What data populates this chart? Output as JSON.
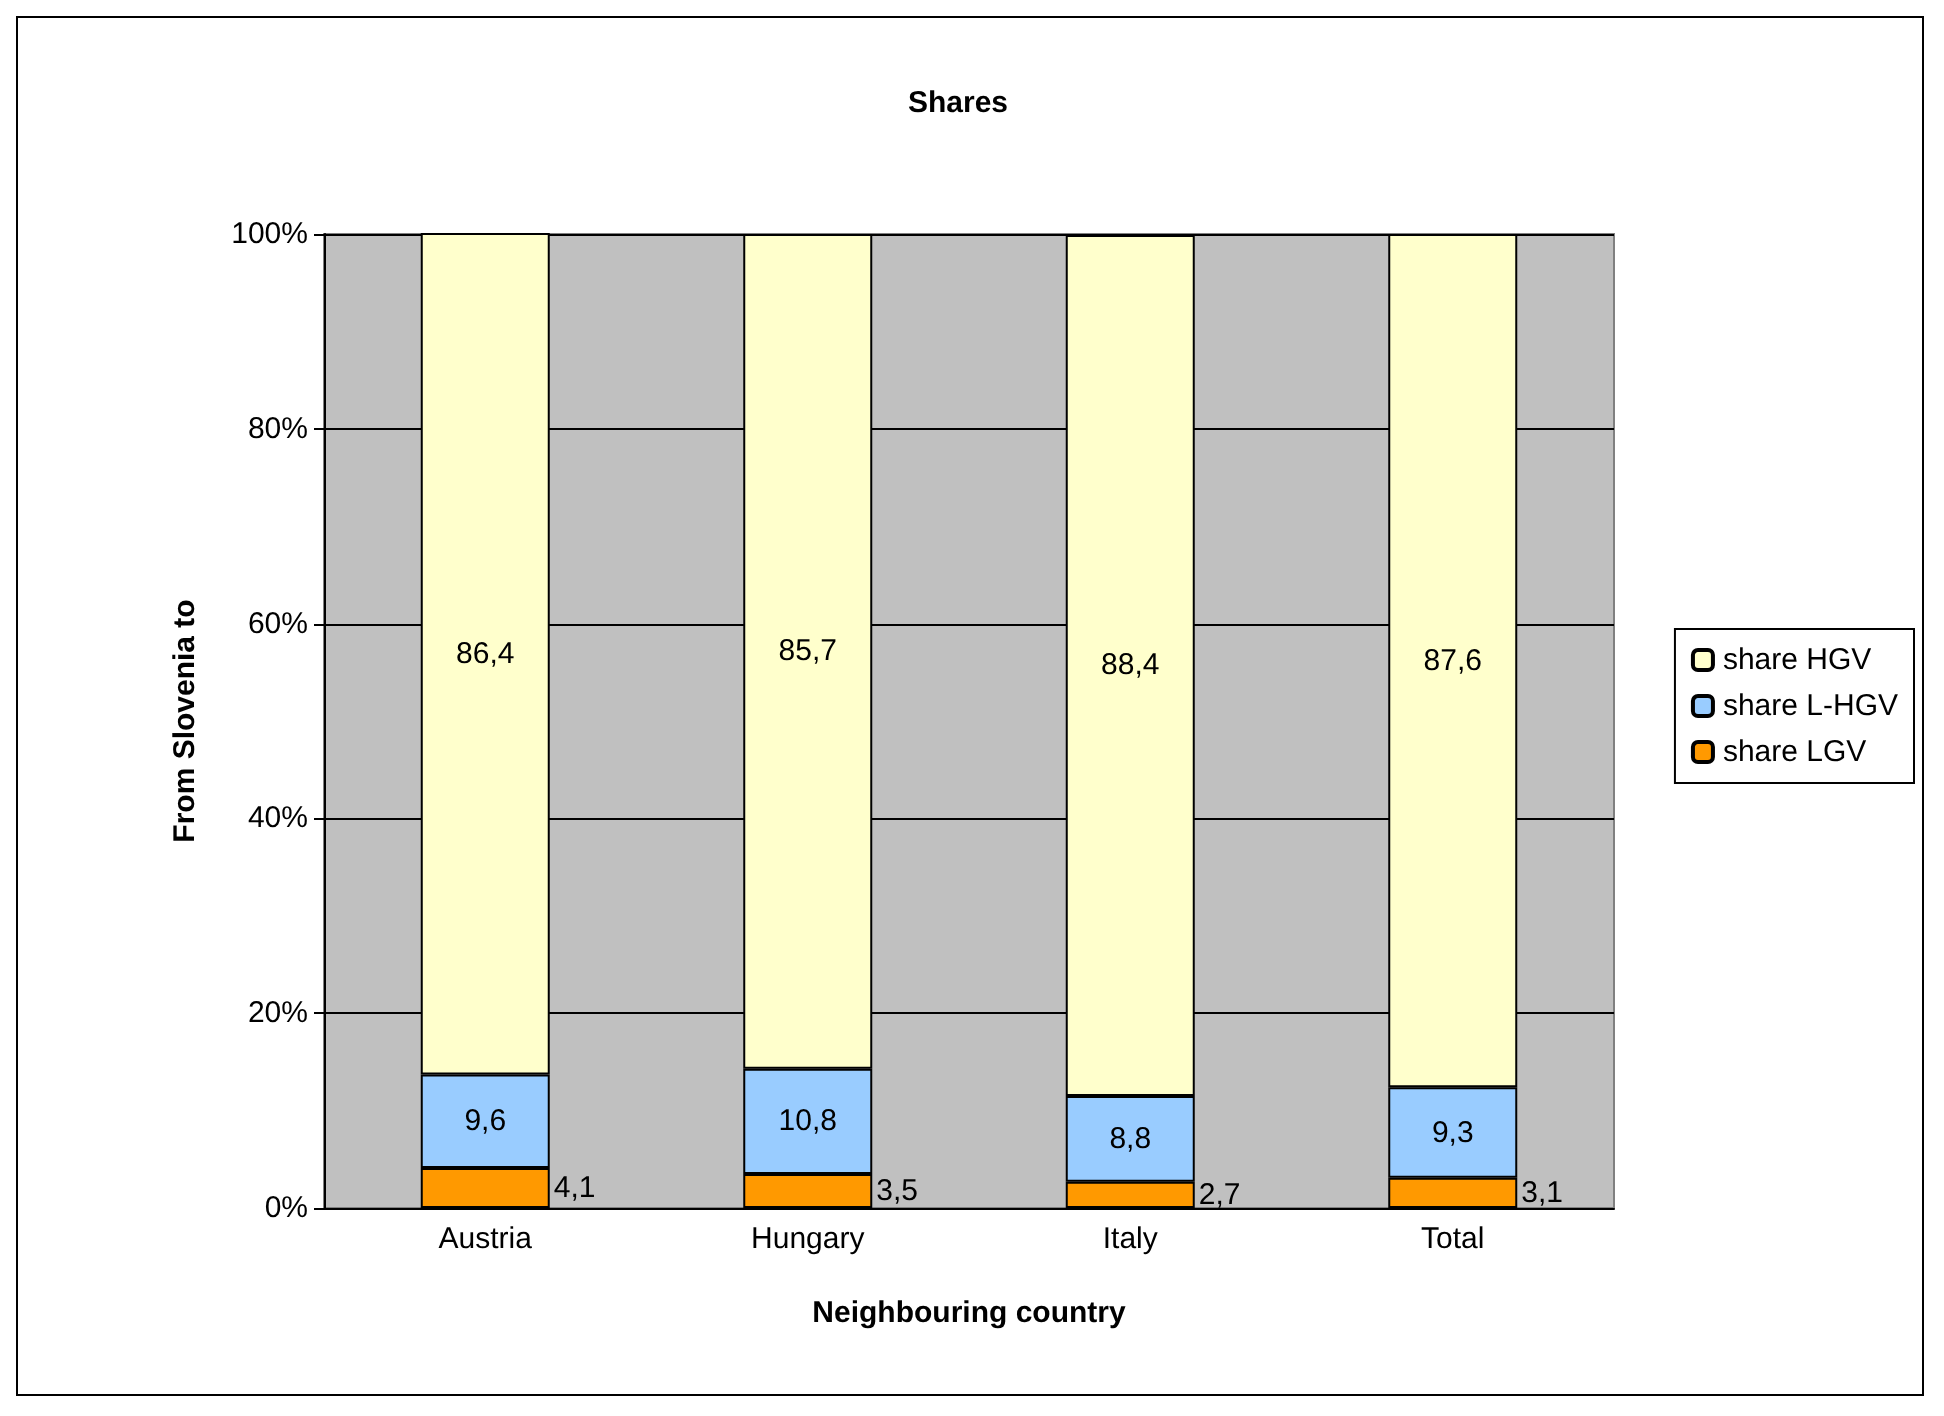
{
  "chart_data": {
    "type": "bar",
    "title": "Shares",
    "xlabel": "Neighbouring country",
    "ylabel": "From Slovenia to",
    "categories": [
      "Austria",
      "Hungary",
      "Italy",
      "Total"
    ],
    "stacked": true,
    "ylim": [
      0,
      100
    ],
    "yticks": [
      {
        "value": 0,
        "label": "0%"
      },
      {
        "value": 20,
        "label": "20%"
      },
      {
        "value": 40,
        "label": "40%"
      },
      {
        "value": 60,
        "label": "60%"
      },
      {
        "value": 80,
        "label": "80%"
      },
      {
        "value": 100,
        "label": "100%"
      }
    ],
    "grid": "y",
    "legend": "right",
    "series": [
      {
        "name": "share LGV",
        "color": "#ff9900",
        "values": [
          4.1,
          3.5,
          2.7,
          3.1
        ],
        "value_labels": [
          "4,1",
          "3,5",
          "2,7",
          "3,1"
        ]
      },
      {
        "name": "share L-HGV",
        "color": "#99ccff",
        "values": [
          9.6,
          10.8,
          8.8,
          9.3
        ],
        "value_labels": [
          "9,6",
          "10,8",
          "8,8",
          "9,3"
        ]
      },
      {
        "name": "share HGV",
        "color": "#ffffcc",
        "values": [
          86.4,
          85.7,
          88.4,
          87.6
        ],
        "value_labels": [
          "86,4",
          "85,7",
          "88,4",
          "87,6"
        ]
      }
    ]
  }
}
